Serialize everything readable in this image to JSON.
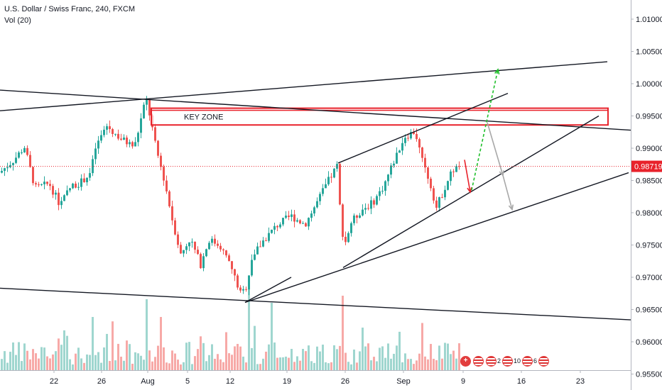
{
  "legend": {
    "symbol": "U.S. Dollar / Swiss Franc, 240, FXCM",
    "volume": "Vol (20)"
  },
  "annotations": {
    "key_zone": "KEY ZONE"
  },
  "price_badge": "0.98719",
  "events": [
    {
      "icon": "swiss-flag-icon",
      "count": ""
    },
    {
      "icon": "us-flag-icon",
      "count": ""
    },
    {
      "icon": "us-flag-icon",
      "count": "2"
    },
    {
      "icon": "us-flag-icon",
      "count": "10"
    },
    {
      "icon": "us-flag-icon",
      "count": "6"
    }
  ],
  "colors": {
    "up": "#26a69a",
    "down": "#ef5350",
    "vol_up": "#9fd6cf",
    "vol_down": "#f7a9a7",
    "zone": "#e8222b",
    "arrow_up": "#1fbf2b",
    "arrow_down": "#e8222b",
    "arrow_gray": "#a8a8a8"
  },
  "chart_data": {
    "type": "candlestick",
    "title": "U.S. Dollar / Swiss Franc, 240, FXCM",
    "y_ticks": [
      "1.01000",
      "1.00500",
      "1.00000",
      "0.99500",
      "0.99000",
      "0.98500",
      "0.98000",
      "0.97500",
      "0.97000",
      "0.96500",
      "0.96000",
      "0.95500"
    ],
    "ylim": [
      0.954,
      1.0125
    ],
    "x_ticks": [
      "22",
      "26",
      "Aug",
      "5",
      "12",
      "19",
      "26",
      "Sep",
      "9",
      "16",
      "23"
    ],
    "current_price": 0.98719,
    "key_zone": [
      0.9936,
      0.9962
    ],
    "price_path": [
      [
        0,
        0.9862
      ],
      [
        20,
        0.9882
      ],
      [
        35,
        0.9902
      ],
      [
        50,
        0.9838
      ],
      [
        70,
        0.9845
      ],
      [
        85,
        0.9812
      ],
      [
        100,
        0.984
      ],
      [
        115,
        0.9848
      ],
      [
        128,
        0.9862
      ],
      [
        135,
        0.99
      ],
      [
        150,
        0.9935
      ],
      [
        170,
        0.9915
      ],
      [
        190,
        0.9902
      ],
      [
        206,
        0.9978
      ],
      [
        212,
        0.9948
      ],
      [
        220,
        0.99
      ],
      [
        232,
        0.985
      ],
      [
        243,
        0.979
      ],
      [
        255,
        0.9735
      ],
      [
        268,
        0.976
      ],
      [
        283,
        0.972
      ],
      [
        295,
        0.9758
      ],
      [
        310,
        0.975
      ],
      [
        325,
        0.9718
      ],
      [
        340,
        0.9672
      ],
      [
        348,
        0.9688
      ],
      [
        355,
        0.973
      ],
      [
        370,
        0.9755
      ],
      [
        390,
        0.978
      ],
      [
        410,
        0.9795
      ],
      [
        430,
        0.9782
      ],
      [
        445,
        0.9812
      ],
      [
        462,
        0.9848
      ],
      [
        475,
        0.9872
      ],
      [
        479,
        0.981
      ],
      [
        485,
        0.9748
      ],
      [
        495,
        0.9785
      ],
      [
        510,
        0.9805
      ],
      [
        525,
        0.9815
      ],
      [
        540,
        0.984
      ],
      [
        555,
        0.988
      ],
      [
        570,
        0.9918
      ],
      [
        585,
        0.9926
      ],
      [
        595,
        0.988
      ],
      [
        605,
        0.985
      ],
      [
        615,
        0.9808
      ],
      [
        625,
        0.9835
      ],
      [
        637,
        0.9865
      ],
      [
        647,
        0.9872
      ]
    ],
    "drawings": {
      "lines": [
        {
          "name": "upper-channel-line",
          "points": [
            [
              0,
              0.9958
            ],
            [
              855,
              1.0034
            ]
          ]
        },
        {
          "name": "descending-resistance-line",
          "points": [
            [
              0,
              0.999
            ],
            [
              888,
              0.9928
            ]
          ]
        },
        {
          "name": "lower-support-line",
          "points": [
            [
              0,
              0.9683
            ],
            [
              888,
              0.9634
            ]
          ]
        },
        {
          "name": "wedge-lower-line",
          "points": [
            [
              345,
              0.9661
            ],
            [
              885,
              0.9862
            ]
          ]
        },
        {
          "name": "wedge-support-line",
          "points": [
            [
              483,
              0.9715
            ],
            [
              843,
              0.995
            ]
          ]
        },
        {
          "name": "wedge-upper-line",
          "points": [
            [
              476,
              0.9877
            ],
            [
              715,
              0.9985
            ]
          ]
        },
        {
          "name": "aug-low-line",
          "points": [
            [
              345,
              0.9661
            ],
            [
              410,
              0.97
            ]
          ]
        }
      ],
      "arrows": [
        {
          "name": "red-down-arrow",
          "from": [
            654,
            0.9882
          ],
          "to": [
            662,
            0.9832
          ],
          "color": "arrow_down",
          "dash": false
        },
        {
          "name": "green-up-arrow",
          "from": [
            664,
            0.9835
          ],
          "to": [
            701,
            1.0022
          ],
          "color": "arrow_up",
          "dash": true
        },
        {
          "name": "gray-arrow-1",
          "from": [
            686,
            0.994
          ],
          "to": [
            708,
            0.9858
          ],
          "color": "arrow_gray",
          "dash": false
        },
        {
          "name": "gray-arrow-2",
          "from": [
            708,
            0.9858
          ],
          "to": [
            721,
            0.9805
          ],
          "color": "arrow_gray",
          "dash": false
        }
      ]
    }
  }
}
